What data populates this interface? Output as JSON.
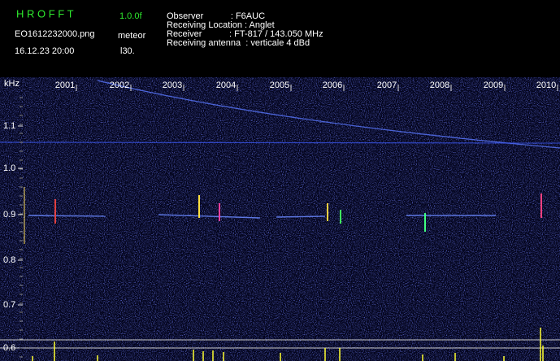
{
  "header": {
    "program": "H R O F F T",
    "version": "1.0.0f",
    "file": "EO1612232000.png",
    "mode": "meteor",
    "datetime": "16.12.23 20:00",
    "interval": "l30."
  },
  "station": [
    "Observer           : F6AUC",
    "Receiving Location : Anglet",
    "Receiver           : FT-817 / 143.050 MHz",
    "Receiving antenna  : verticale 4 dBd"
  ],
  "axis": {
    "unit": "kHz",
    "x_labels": [
      "2001",
      "2002",
      "2003",
      "2004",
      "2005",
      "2006",
      "2007",
      "2008",
      "2009",
      "2010"
    ],
    "y_labels": [
      "1.1",
      "1.0",
      "0.9",
      "0.8",
      "0.7",
      "0.6"
    ]
  }
}
